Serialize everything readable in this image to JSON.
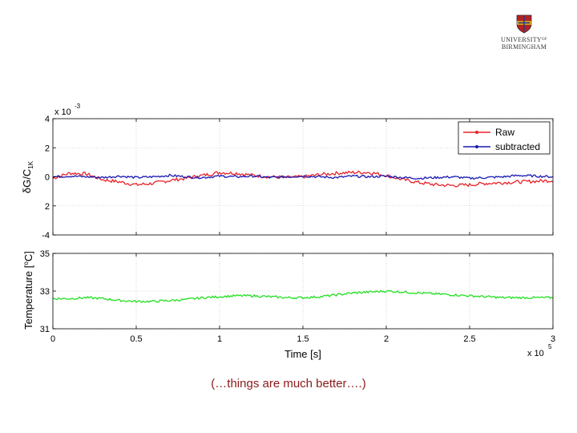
{
  "logo": {
    "line1": "UNIVERSITY",
    "line1_sup": "OF",
    "line2": "BIRMINGHAM",
    "crest_colors": [
      "#b22222",
      "#d4a017",
      "#1f3a93"
    ]
  },
  "caption": "(…things are much better….)",
  "chart_data": [
    {
      "type": "line",
      "ylabel": "δG/C1K",
      "ylabel_main": "δG/C",
      "ylabel_sub": "1K",
      "y_exponent_label": "x 10",
      "y_exponent_sup": "-3",
      "ylim": [
        -4,
        4
      ],
      "yticks": [
        4,
        2,
        0,
        2,
        -4
      ],
      "xlim": [
        0,
        3
      ],
      "grid": true,
      "legend_position": "top-right",
      "series": [
        {
          "name": "Raw",
          "color": "#e8232a",
          "x": [
            0,
            0.1,
            0.2,
            0.3,
            0.4,
            0.5,
            0.6,
            0.7,
            0.8,
            0.9,
            1.0,
            1.1,
            1.2,
            1.3,
            1.4,
            1.5,
            1.6,
            1.7,
            1.8,
            1.9,
            2.0,
            2.1,
            2.2,
            2.3,
            2.4,
            2.5,
            2.6,
            2.7,
            2.8,
            2.9,
            3.0
          ],
          "y": [
            -0.1,
            0.25,
            0.2,
            -0.2,
            -0.35,
            -0.55,
            -0.45,
            -0.25,
            -0.1,
            0.1,
            0.3,
            0.25,
            0.1,
            0.0,
            -0.05,
            0.0,
            0.15,
            0.25,
            0.3,
            0.3,
            0.1,
            -0.2,
            -0.4,
            -0.55,
            -0.6,
            -0.55,
            -0.45,
            -0.4,
            -0.35,
            -0.3,
            -0.25
          ]
        },
        {
          "name": "subtracted",
          "color": "#1a1ab4",
          "x": [
            0,
            0.1,
            0.2,
            0.3,
            0.4,
            0.5,
            0.6,
            0.7,
            0.8,
            0.9,
            1.0,
            1.1,
            1.2,
            1.3,
            1.4,
            1.5,
            1.6,
            1.7,
            1.8,
            1.9,
            2.0,
            2.1,
            2.2,
            2.3,
            2.4,
            2.5,
            2.6,
            2.7,
            2.8,
            2.9,
            3.0
          ],
          "y": [
            0.0,
            0.05,
            0.0,
            -0.05,
            0.05,
            -0.05,
            0.0,
            0.1,
            0.0,
            -0.05,
            0.05,
            0.0,
            0.05,
            -0.05,
            0.0,
            0.05,
            0.0,
            -0.05,
            0.05,
            0.0,
            0.05,
            -0.05,
            -0.1,
            -0.05,
            0.0,
            -0.1,
            -0.05,
            0.0,
            0.1,
            0.05,
            0.0
          ]
        }
      ]
    },
    {
      "type": "line",
      "ylabel_main": "Temperature [",
      "ylabel_deg": "o",
      "ylabel_end": "C]",
      "xlabel": "Time [s]",
      "x_exponent_label": "x 10",
      "x_exponent_sup": "5",
      "ylim": [
        31,
        35
      ],
      "yticks": [
        35,
        33,
        31
      ],
      "xlim": [
        0,
        3
      ],
      "xticks": [
        0,
        0.5,
        1,
        1.5,
        2,
        2.5,
        3
      ],
      "grid": true,
      "series": [
        {
          "name": "temperature",
          "color": "#22e022",
          "x": [
            0,
            0.1,
            0.2,
            0.3,
            0.4,
            0.5,
            0.6,
            0.7,
            0.8,
            0.9,
            1.0,
            1.1,
            1.2,
            1.3,
            1.4,
            1.5,
            1.6,
            1.7,
            1.8,
            1.9,
            2.0,
            2.1,
            2.2,
            2.3,
            2.4,
            2.5,
            2.6,
            2.7,
            2.8,
            2.9,
            3.0
          ],
          "y": [
            32.6,
            32.6,
            32.65,
            32.6,
            32.5,
            32.45,
            32.45,
            32.5,
            32.55,
            32.65,
            32.7,
            32.75,
            32.75,
            32.7,
            32.65,
            32.65,
            32.7,
            32.8,
            32.9,
            32.95,
            33.0,
            32.95,
            32.9,
            32.85,
            32.8,
            32.75,
            32.7,
            32.65,
            32.65,
            32.65,
            32.65
          ]
        }
      ]
    }
  ]
}
